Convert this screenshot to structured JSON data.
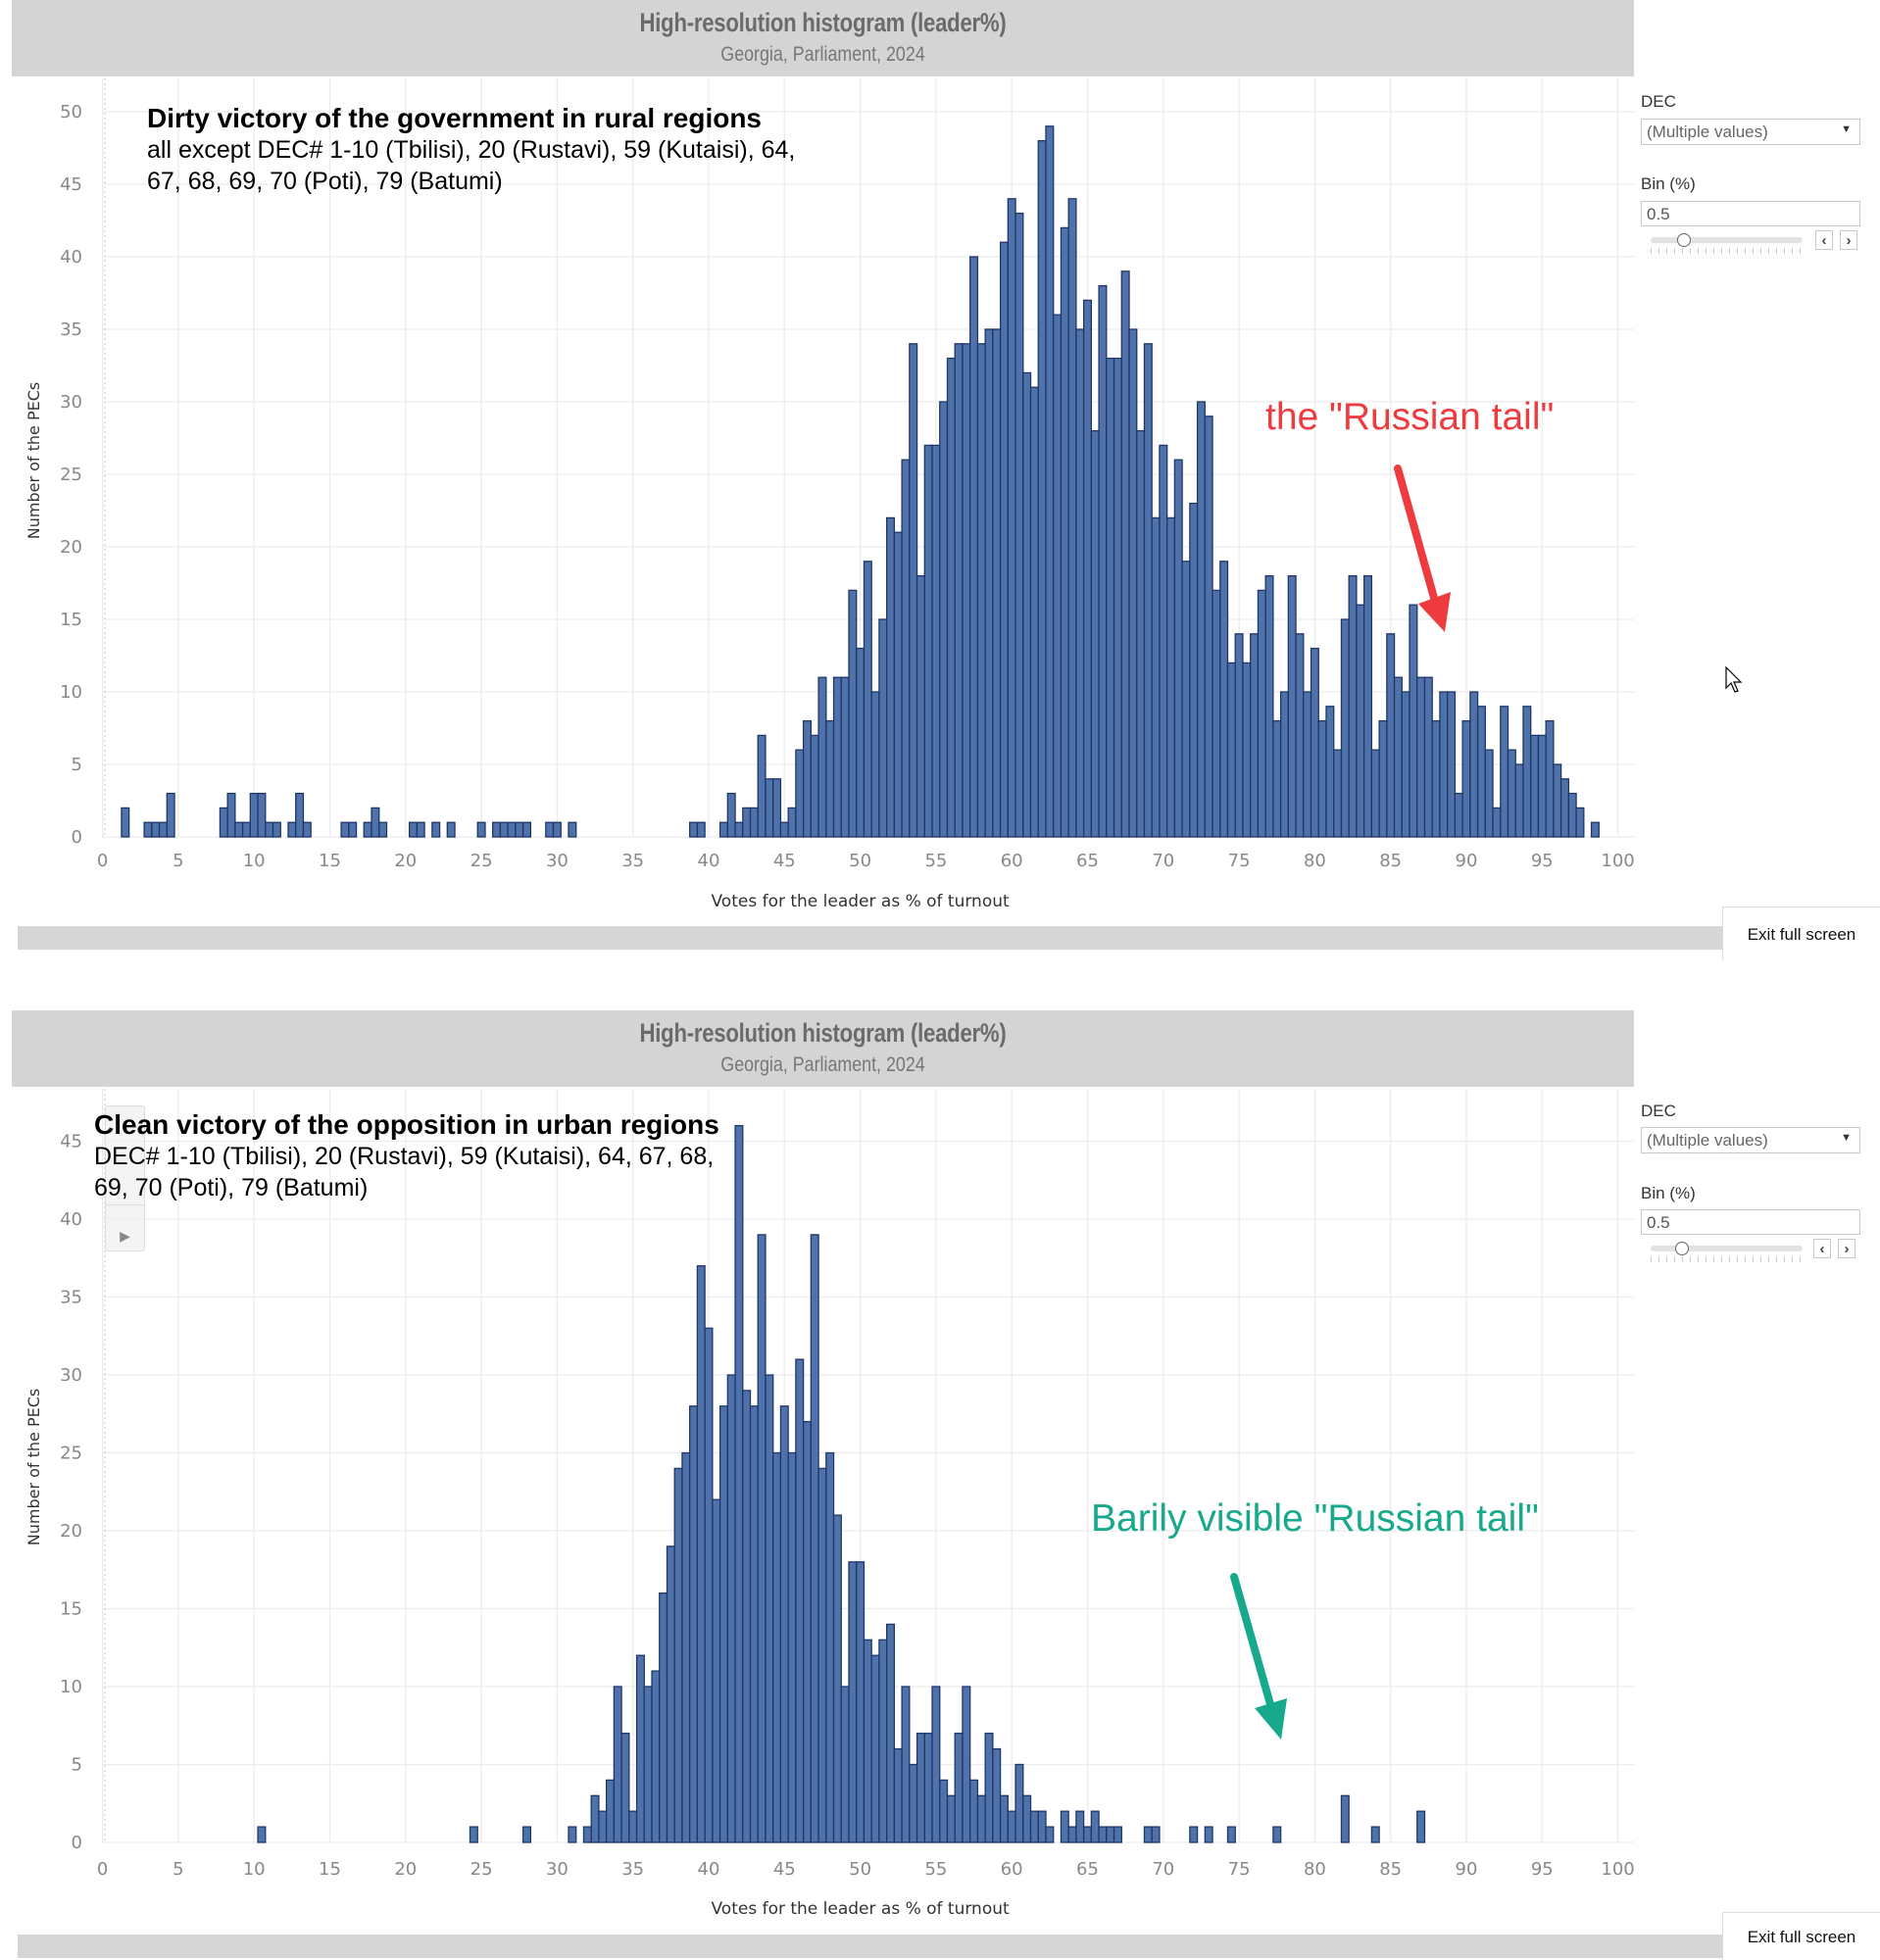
{
  "panels": [
    {
      "header": {
        "title": "High-resolution histogram (leader%)",
        "subtitle": "Georgia, Parliament, 2024"
      },
      "annotation": {
        "title": "Dirty victory of the government in rural regions",
        "lines": [
          "all except DEC# 1-10 (Tbilisi), 20 (Rustavi), 59 (Kutaisi), 64,",
          "67, 68, 69, 70 (Poti), 79 (Batumi)"
        ]
      },
      "callout": {
        "text": "the \"Russian tail\"",
        "color": "#ee3b3f"
      },
      "controls": {
        "dec_label": "DEC",
        "dec_value": "(Multiple values)",
        "bin_label": "Bin (%)",
        "bin_value": "0.5"
      },
      "exit_label": "Exit full screen"
    },
    {
      "header": {
        "title": "High-resolution histogram (leader%)",
        "subtitle": "Georgia, Parliament, 2024"
      },
      "annotation": {
        "title": "Clean victory of the opposition in urban regions",
        "lines": [
          "DEC# 1-10 (Tbilisi), 20 (Rustavi), 59 (Kutaisi), 64, 67, 68,",
          "69, 70 (Poti), 79 (Batumi)"
        ]
      },
      "callout": {
        "text": "Barily visible \"Russian tail\"",
        "color": "#17a98b"
      },
      "controls": {
        "dec_label": "DEC",
        "dec_value": "(Multiple values)",
        "bin_label": "Bin (%)",
        "bin_value": "0.5"
      },
      "exit_label": "Exit full screen"
    }
  ],
  "chart_data": [
    {
      "type": "bar",
      "title": "High-resolution histogram (leader%)",
      "subtitle": "Georgia, Parliament, 2024",
      "xlabel": "Votes for the leader as % of turnout",
      "ylabel": "Number of the PECs",
      "bin_width": 0.5,
      "xlim": [
        0,
        100
      ],
      "ylim": [
        0,
        50
      ],
      "grid": true,
      "bar_color": "#5072aa",
      "x_ticks": [
        "0",
        "5",
        "10",
        "15",
        "20",
        "25",
        "30",
        "35",
        "40",
        "45",
        "50",
        "55",
        "60",
        "65",
        "70",
        "75",
        "80",
        "85",
        "90",
        "95",
        "100"
      ],
      "y_ticks": [
        "0",
        "5",
        "10",
        "15",
        "20",
        "25",
        "30",
        "35",
        "40",
        "45",
        "50"
      ],
      "x": [
        1.5,
        3,
        3.5,
        4,
        4.5,
        8,
        8.5,
        9,
        9.5,
        10,
        10.5,
        11,
        11.5,
        12.5,
        13,
        13.5,
        16,
        16.5,
        17.5,
        18,
        18.5,
        20.5,
        21,
        22,
        23,
        25,
        26,
        26.5,
        27,
        27.5,
        28,
        29.5,
        30,
        31,
        39,
        39.5,
        41,
        41.5,
        42,
        42.5,
        43,
        43.5,
        44,
        44.5,
        45,
        45.5,
        46,
        46.5,
        47,
        47.5,
        48,
        48.5,
        49,
        49.5,
        50,
        50.5,
        51,
        51.5,
        52,
        52.5,
        53,
        53.5,
        54,
        54.5,
        55,
        55.5,
        56,
        56.5,
        57,
        57.5,
        58,
        58.5,
        59,
        59.5,
        60,
        60.5,
        61,
        61.5,
        62,
        62.5,
        63,
        63.5,
        64,
        64.5,
        65,
        65.5,
        66,
        66.5,
        67,
        67.5,
        68,
        68.5,
        69,
        69.5,
        70,
        70.5,
        71,
        71.5,
        72,
        72.5,
        73,
        73.5,
        74,
        74.5,
        75,
        75.5,
        76,
        76.5,
        77,
        77.5,
        78,
        78.5,
        79,
        79.5,
        80,
        80.5,
        81,
        81.5,
        82,
        82.5,
        83,
        83.5,
        84,
        84.5,
        85,
        85.5,
        86,
        86.5,
        87,
        87.5,
        88,
        88.5,
        89,
        89.5,
        90,
        90.5,
        91,
        91.5,
        92,
        92.5,
        93,
        93.5,
        94,
        94.5,
        95,
        95.5,
        96,
        96.5,
        97,
        97.5,
        98.5
      ],
      "values": [
        2,
        1,
        1,
        1,
        3,
        2,
        3,
        1,
        1,
        3,
        3,
        1,
        1,
        1,
        3,
        1,
        1,
        1,
        1,
        2,
        1,
        1,
        1,
        1,
        1,
        1,
        1,
        1,
        1,
        1,
        1,
        1,
        1,
        1,
        1,
        1,
        1,
        3,
        1,
        2,
        2,
        7,
        4,
        4,
        1,
        2,
        6,
        8,
        7,
        11,
        8,
        11,
        11,
        17,
        13,
        19,
        10,
        15,
        22,
        21,
        26,
        34,
        18,
        27,
        27,
        30,
        33,
        34,
        34,
        40,
        34,
        35,
        35,
        41,
        44,
        43,
        32,
        31,
        48,
        49,
        36,
        42,
        44,
        35,
        37,
        28,
        38,
        33,
        33,
        39,
        35,
        28,
        34,
        22,
        27,
        22,
        26,
        19,
        23,
        30,
        29,
        17,
        19,
        12,
        14,
        12,
        14,
        17,
        18,
        8,
        10,
        18,
        14,
        10,
        13,
        8,
        9,
        6,
        15,
        18,
        16,
        18,
        6,
        8,
        14,
        11,
        10,
        16,
        11,
        11,
        8,
        10,
        10,
        3,
        8,
        10,
        9,
        6,
        2,
        9,
        6,
        5,
        9,
        7,
        7,
        8,
        5,
        4,
        3,
        2,
        1
      ]
    },
    {
      "type": "bar",
      "title": "High-resolution histogram (leader%)",
      "subtitle": "Georgia, Parliament, 2024",
      "xlabel": "Votes for the leader as % of turnout",
      "ylabel": "Number of the PECs",
      "bin_width": 0.5,
      "xlim": [
        0,
        100
      ],
      "ylim": [
        0,
        45
      ],
      "grid": true,
      "bar_color": "#5072aa",
      "x_ticks": [
        "0",
        "5",
        "10",
        "15",
        "20",
        "25",
        "30",
        "35",
        "40",
        "45",
        "50",
        "55",
        "60",
        "65",
        "70",
        "75",
        "80",
        "85",
        "90",
        "95",
        "100"
      ],
      "y_ticks": [
        "0",
        "5",
        "10",
        "15",
        "20",
        "25",
        "30",
        "35",
        "40",
        "45"
      ],
      "x": [
        10.5,
        24.5,
        28,
        31,
        32,
        32.5,
        33,
        33.5,
        34,
        34.5,
        35,
        35.5,
        36,
        36.5,
        37,
        37.5,
        38,
        38.5,
        39,
        39.5,
        40,
        40.5,
        41,
        41.5,
        42,
        42.5,
        43,
        43.5,
        44,
        44.5,
        45,
        45.5,
        46,
        46.5,
        47,
        47.5,
        48,
        48.5,
        49,
        49.5,
        50,
        50.5,
        51,
        51.5,
        52,
        52.5,
        53,
        53.5,
        54,
        54.5,
        55,
        55.5,
        56,
        56.5,
        57,
        57.5,
        58,
        58.5,
        59,
        59.5,
        60,
        60.5,
        61,
        61.5,
        62,
        62.5,
        63.5,
        64,
        64.5,
        65,
        65.5,
        66,
        66.5,
        67,
        69,
        69.5,
        72,
        73,
        74.5,
        77.5,
        82,
        84,
        87
      ],
      "values": [
        1,
        1,
        1,
        1,
        1,
        3,
        2,
        4,
        10,
        7,
        2,
        12,
        10,
        11,
        16,
        19,
        24,
        25,
        28,
        37,
        33,
        22,
        28,
        30,
        46,
        29,
        28,
        39,
        30,
        25,
        28,
        25,
        31,
        27,
        39,
        24,
        25,
        21,
        10,
        18,
        18,
        13,
        12,
        13,
        14,
        6,
        10,
        5,
        7,
        7,
        10,
        4,
        3,
        7,
        10,
        4,
        3,
        7,
        6,
        3,
        2,
        5,
        3,
        2,
        2,
        1,
        2,
        1,
        2,
        1,
        2,
        1,
        1,
        1,
        1,
        1,
        1,
        1,
        1,
        1,
        3,
        1,
        2
      ]
    }
  ]
}
